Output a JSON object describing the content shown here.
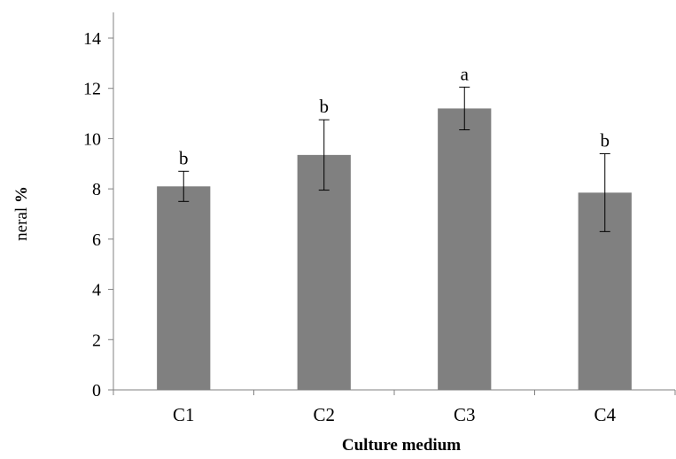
{
  "chart_data": {
    "type": "bar",
    "categories": [
      "C1",
      "C2",
      "C3",
      "C4"
    ],
    "values": [
      8.1,
      9.35,
      11.2,
      7.85
    ],
    "errors": [
      0.6,
      1.4,
      0.85,
      1.55
    ],
    "significance": [
      "b",
      "b",
      "a",
      "b"
    ],
    "xlabel": "Culture medium",
    "ylabel": {
      "text": "neral ",
      "bold_part": "%"
    },
    "ylim": [
      0,
      14
    ],
    "yticks": [
      0,
      2,
      4,
      6,
      8,
      10,
      12,
      14
    ],
    "grid": false,
    "legend": "none",
    "bar_color": "#808080",
    "axis_color": "#808080"
  }
}
